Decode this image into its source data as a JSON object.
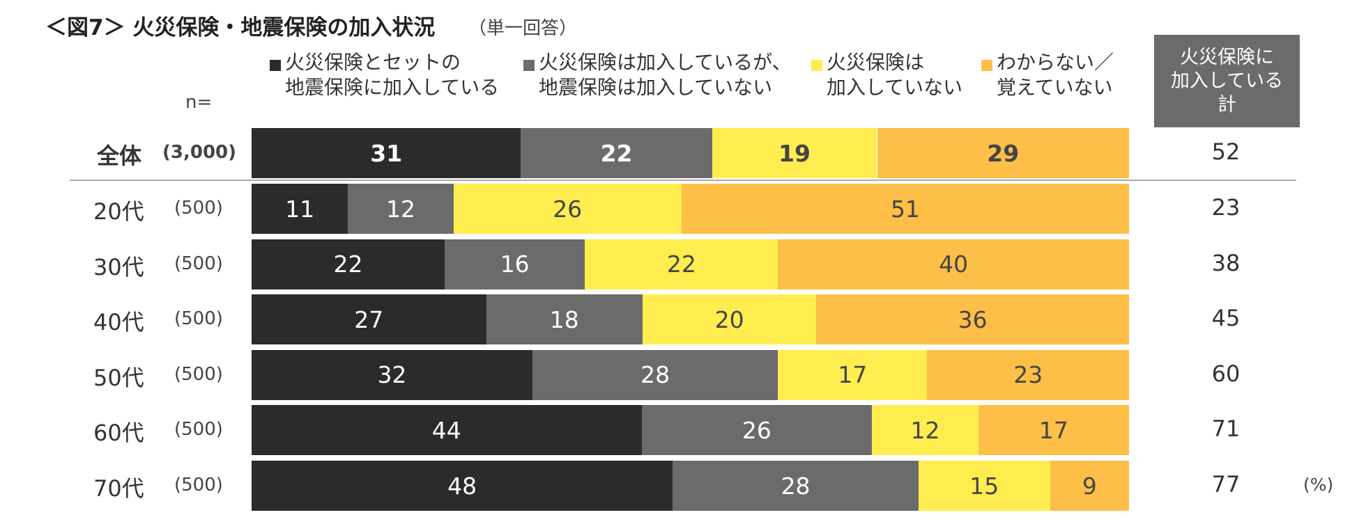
{
  "chart_data": {
    "type": "stacked-bar-100",
    "title": "＜図7＞ 火災保険・地震保険の加入状況",
    "subtitle": "（単一回答）",
    "n_label": "n=",
    "categories": [
      "全体",
      "20代",
      "30代",
      "40代",
      "50代",
      "60代",
      "70代"
    ],
    "n": [
      "(3,000)",
      "(500)",
      "(500)",
      "(500)",
      "(500)",
      "(500)",
      "(500)"
    ],
    "series": [
      {
        "name": "火災保険とセットの\n地震保険に加入している",
        "color": "#2b2b2b",
        "values": [
          31,
          11,
          22,
          27,
          32,
          44,
          48
        ]
      },
      {
        "name": "火災保険は加入しているが、\n地震保険は加入していない",
        "color": "#6b6b6b",
        "values": [
          22,
          12,
          16,
          18,
          28,
          26,
          28
        ]
      },
      {
        "name": "火災保険は\n加入していない",
        "color": "#ffed4f",
        "values": [
          19,
          26,
          22,
          20,
          17,
          12,
          15
        ]
      },
      {
        "name": "わからない／\n覚えていない",
        "color": "#fdbf47",
        "values": [
          29,
          51,
          40,
          36,
          23,
          17,
          9
        ]
      }
    ],
    "total_header": "火災保険に\n加入している\n計",
    "totals": [
      52,
      23,
      38,
      45,
      60,
      71,
      77
    ],
    "unit": "(%)"
  }
}
